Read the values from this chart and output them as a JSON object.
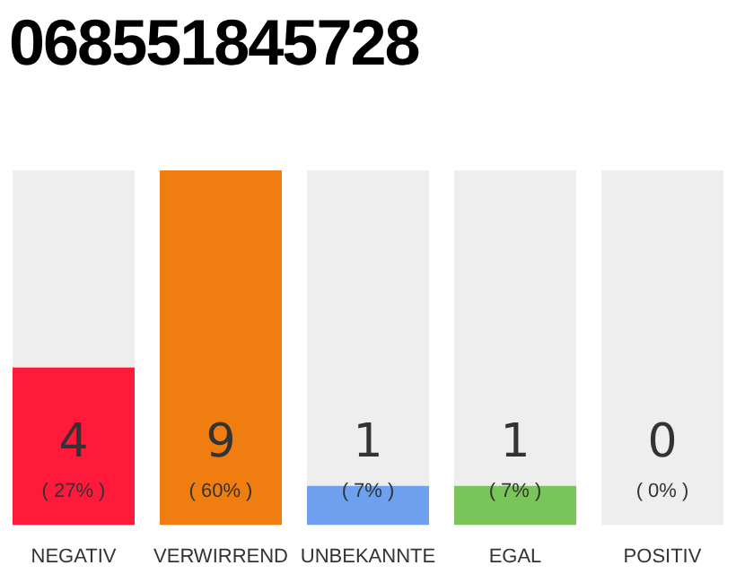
{
  "chart_data": {
    "type": "bar",
    "title": "068551845728",
    "categories": [
      "NEGATIV",
      "VERWIRREND",
      "UNBEKANNTE",
      "EGAL",
      "POSITIV"
    ],
    "stacked": true,
    "series": [
      {
        "colors": [
          "#ff1a3c",
          "#f07d0f",
          "#6ea0f0",
          "#7ac55a",
          "#7ac55a"
        ],
        "values": [
          4,
          9,
          1,
          1,
          0
        ],
        "value_labels": [
          "4",
          "9",
          "1",
          "1",
          null
        ]
      },
      {
        "color": "#eeeeee",
        "values": [
          5,
          0,
          8,
          8,
          9
        ]
      }
    ],
    "annotations": [
      "( 27% )",
      "( 60% )",
      "( 7% )",
      "( 7% )",
      "( 0% )",
      {
        "text": "0",
        "x": "POSITIV",
        "y": 0
      }
    ]
  }
}
